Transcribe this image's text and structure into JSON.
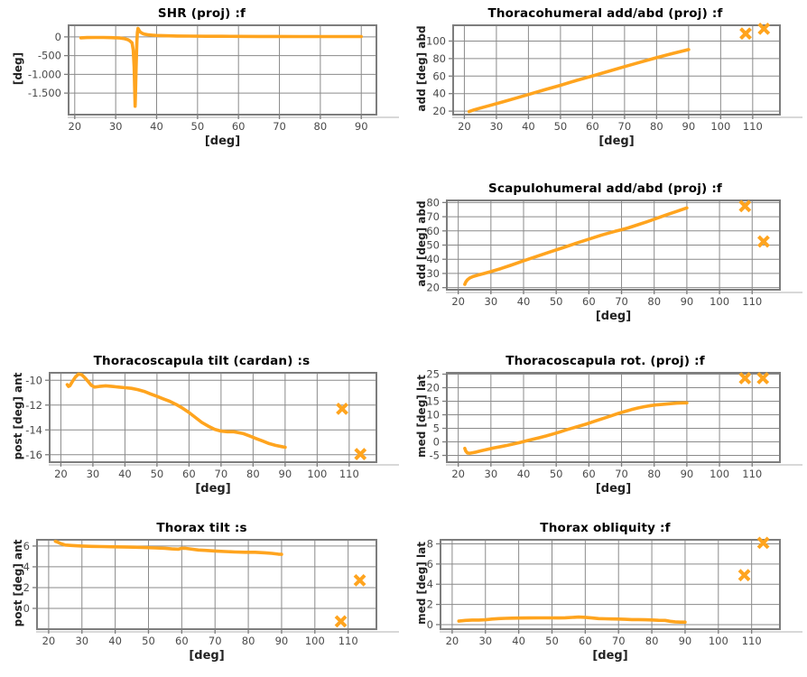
{
  "colors": {
    "series_line": "#FFA41E",
    "marker": "#FFA41E",
    "grid_line": "#8a8a8a",
    "plot_border": "#7d7d7d",
    "axis_shadow": "#cccccc",
    "tick_label": "#4a4a4a",
    "title_text": "#000000",
    "background": "#ffffff"
  },
  "chart_data": [
    {
      "type": "line",
      "title": "SHR (proj) :f",
      "xlabel": "[deg]",
      "ylabel": "[deg]",
      "xlim": [
        18.5,
        93.7
      ],
      "ylim": [
        -2075,
        310
      ],
      "xticks": [
        20,
        30,
        40,
        50,
        60,
        70,
        80,
        90
      ],
      "ytick_values": [
        0,
        -500,
        -1000,
        -1500
      ],
      "ytick_labels": [
        "0",
        "-500",
        "-1.000",
        "-1.500"
      ],
      "grid": true,
      "line_points": [
        [
          21.5,
          -25
        ],
        [
          23,
          -18
        ],
        [
          25,
          -15
        ],
        [
          27,
          -16
        ],
        [
          29,
          -20
        ],
        [
          31,
          -30
        ],
        [
          32,
          -45
        ],
        [
          33,
          -75
        ],
        [
          33.5,
          -110
        ],
        [
          34,
          -160
        ],
        [
          34.3,
          -350
        ],
        [
          34.5,
          -800
        ],
        [
          34.65,
          -1400
        ],
        [
          34.75,
          -1850
        ],
        [
          34.85,
          -1500
        ],
        [
          35,
          -800
        ],
        [
          35.1,
          -400
        ],
        [
          35.2,
          -100
        ],
        [
          35.3,
          120
        ],
        [
          35.45,
          225
        ],
        [
          35.6,
          205
        ],
        [
          35.8,
          160
        ],
        [
          36,
          130
        ],
        [
          36.5,
          95
        ],
        [
          37,
          75
        ],
        [
          38,
          55
        ],
        [
          39,
          45
        ],
        [
          40,
          38
        ],
        [
          42,
          30
        ],
        [
          45,
          24
        ],
        [
          48,
          20
        ],
        [
          52,
          17
        ],
        [
          56,
          15
        ],
        [
          60,
          14
        ],
        [
          65,
          12
        ],
        [
          70,
          11
        ],
        [
          75,
          10
        ],
        [
          80,
          10
        ],
        [
          85,
          9
        ],
        [
          90,
          8
        ]
      ],
      "cross_markers": []
    },
    {
      "type": "line",
      "title": "Thoracohumeral add/abd (proj) :f",
      "xlabel": "[deg]",
      "ylabel": "add [deg] abd",
      "xlim": [
        16.5,
        118.5
      ],
      "ylim": [
        16,
        118
      ],
      "xticks": [
        20,
        30,
        40,
        50,
        60,
        70,
        80,
        90,
        100,
        110
      ],
      "ytick_values": [
        20,
        40,
        60,
        80,
        100
      ],
      "ytick_labels": [
        "20",
        "40",
        "60",
        "80",
        "100"
      ],
      "grid": true,
      "line_points": [
        [
          21.5,
          19.5
        ],
        [
          23,
          21.5
        ],
        [
          25,
          23.5
        ],
        [
          28,
          26.5
        ],
        [
          32,
          30.5
        ],
        [
          36,
          34.8
        ],
        [
          40,
          39
        ],
        [
          45,
          44.3
        ],
        [
          50,
          49.5
        ],
        [
          55,
          55
        ],
        [
          60,
          60.2
        ],
        [
          65,
          65.5
        ],
        [
          70,
          70.8
        ],
        [
          75,
          76
        ],
        [
          80,
          81
        ],
        [
          85,
          85.8
        ],
        [
          90,
          90.3
        ]
      ],
      "cross_markers": [
        [
          107.8,
          108.5
        ],
        [
          113.5,
          114
        ]
      ]
    },
    {
      "type": "line",
      "title": "Scapulohumeral add/abd (proj) :f",
      "xlabel": "[deg]",
      "ylabel": "add [deg] abd",
      "xlim": [
        16.5,
        118.5
      ],
      "ylim": [
        18.5,
        81.5
      ],
      "xticks": [
        20,
        30,
        40,
        50,
        60,
        70,
        80,
        90,
        100,
        110
      ],
      "ytick_values": [
        20,
        30,
        40,
        50,
        60,
        70,
        80
      ],
      "ytick_labels": [
        "20",
        "30",
        "40",
        "50",
        "60",
        "70",
        "80"
      ],
      "grid": true,
      "line_points": [
        [
          22,
          22.3
        ],
        [
          22.3,
          24
        ],
        [
          22.8,
          25.5
        ],
        [
          23.5,
          26.8
        ],
        [
          24.5,
          27.8
        ],
        [
          26,
          28.8
        ],
        [
          28,
          30
        ],
        [
          30,
          31.3
        ],
        [
          33,
          33.4
        ],
        [
          36,
          35.7
        ],
        [
          40,
          38.9
        ],
        [
          44,
          42
        ],
        [
          48,
          45.1
        ],
        [
          52,
          48.1
        ],
        [
          56,
          51.2
        ],
        [
          60,
          54.2
        ],
        [
          64,
          57.1
        ],
        [
          68,
          59.7
        ],
        [
          70,
          60.8
        ],
        [
          72,
          62.1
        ],
        [
          75,
          64.3
        ],
        [
          78,
          66.6
        ],
        [
          81,
          69
        ],
        [
          84,
          71.5
        ],
        [
          87,
          73.8
        ],
        [
          90,
          76.2
        ]
      ],
      "cross_markers": [
        [
          107.8,
          77.5
        ],
        [
          113.5,
          52.5
        ]
      ]
    },
    {
      "type": "line",
      "title": "Thoracoscapula tilt (cardan) :s",
      "xlabel": "[deg]",
      "ylabel": "post [deg] ant",
      "xlim": [
        16.5,
        118.5
      ],
      "ylim": [
        -16.6,
        -9.4
      ],
      "xticks": [
        20,
        30,
        40,
        50,
        60,
        70,
        80,
        90,
        100,
        110
      ],
      "ytick_values": [
        -10,
        -12,
        -14,
        -16
      ],
      "ytick_labels": [
        "-10",
        "-12",
        "-14",
        "-16"
      ],
      "grid": true,
      "line_points": [
        [
          22,
          -10.35
        ],
        [
          22.4,
          -10.5
        ],
        [
          22.8,
          -10.45
        ],
        [
          23.5,
          -10.15
        ],
        [
          24.5,
          -9.75
        ],
        [
          25.5,
          -9.5
        ],
        [
          26.5,
          -9.55
        ],
        [
          27.5,
          -9.8
        ],
        [
          28.5,
          -10.1
        ],
        [
          29.5,
          -10.4
        ],
        [
          30.5,
          -10.55
        ],
        [
          32,
          -10.5
        ],
        [
          34,
          -10.45
        ],
        [
          36,
          -10.5
        ],
        [
          38,
          -10.55
        ],
        [
          40,
          -10.6
        ],
        [
          42,
          -10.65
        ],
        [
          44,
          -10.75
        ],
        [
          46,
          -10.9
        ],
        [
          48,
          -11.1
        ],
        [
          50,
          -11.3
        ],
        [
          52,
          -11.5
        ],
        [
          54,
          -11.7
        ],
        [
          56,
          -11.95
        ],
        [
          58,
          -12.25
        ],
        [
          60,
          -12.6
        ],
        [
          62,
          -13
        ],
        [
          64,
          -13.4
        ],
        [
          66,
          -13.7
        ],
        [
          68,
          -13.95
        ],
        [
          70,
          -14.1
        ],
        [
          72,
          -14.15
        ],
        [
          74,
          -14.15
        ],
        [
          75,
          -14.2
        ],
        [
          77,
          -14.3
        ],
        [
          79,
          -14.5
        ],
        [
          81,
          -14.7
        ],
        [
          83,
          -14.9
        ],
        [
          85,
          -15.1
        ],
        [
          87,
          -15.25
        ],
        [
          89,
          -15.35
        ],
        [
          90,
          -15.4
        ]
      ],
      "cross_markers": [
        [
          107.8,
          -12.3
        ],
        [
          113.5,
          -15.95
        ]
      ]
    },
    {
      "type": "line",
      "title": "Thoracoscapula rot. (proj) :f",
      "xlabel": "[deg]",
      "ylabel": "med [deg] lat",
      "xlim": [
        16.5,
        118.5
      ],
      "ylim": [
        -7.5,
        25.5
      ],
      "xticks": [
        20,
        30,
        40,
        50,
        60,
        70,
        80,
        90,
        100,
        110
      ],
      "ytick_values": [
        -5,
        0,
        5,
        10,
        15,
        20,
        25
      ],
      "ytick_labels": [
        "-5",
        "0",
        "5",
        "10",
        "15",
        "20",
        "25"
      ],
      "grid": true,
      "line_points": [
        [
          22,
          -2.4
        ],
        [
          22.3,
          -3.4
        ],
        [
          22.8,
          -4.1
        ],
        [
          23.5,
          -4.2
        ],
        [
          24.5,
          -4
        ],
        [
          25.5,
          -3.75
        ],
        [
          27,
          -3.3
        ],
        [
          29,
          -2.75
        ],
        [
          31,
          -2.2
        ],
        [
          33,
          -1.75
        ],
        [
          35,
          -1.3
        ],
        [
          37,
          -0.75
        ],
        [
          39,
          -0.2
        ],
        [
          41,
          0.4
        ],
        [
          43,
          1
        ],
        [
          45,
          1.6
        ],
        [
          47,
          2.2
        ],
        [
          49,
          2.9
        ],
        [
          51,
          3.6
        ],
        [
          53,
          4.4
        ],
        [
          55,
          5.1
        ],
        [
          57,
          5.8
        ],
        [
          59,
          6.5
        ],
        [
          61,
          7.3
        ],
        [
          63,
          8.1
        ],
        [
          65,
          8.9
        ],
        [
          67,
          9.7
        ],
        [
          69,
          10.5
        ],
        [
          71,
          11.2
        ],
        [
          73,
          11.9
        ],
        [
          75,
          12.5
        ],
        [
          77,
          13
        ],
        [
          79,
          13.4
        ],
        [
          81,
          13.7
        ],
        [
          83,
          13.9
        ],
        [
          85,
          14.1
        ],
        [
          87,
          14.3
        ],
        [
          89,
          14.4
        ],
        [
          90,
          14.4
        ]
      ],
      "cross_markers": [
        [
          107.8,
          23.5
        ],
        [
          113.3,
          23.5
        ]
      ]
    },
    {
      "type": "line",
      "title": "Thorax tilt :s",
      "xlabel": "[deg]",
      "ylabel": "post [deg] ant",
      "xlim": [
        16.5,
        118.5
      ],
      "ylim": [
        -2.0,
        6.6
      ],
      "xticks": [
        20,
        30,
        40,
        50,
        60,
        70,
        80,
        90,
        100,
        110
      ],
      "ytick_values": [
        0,
        2,
        4,
        6
      ],
      "ytick_labels": [
        "0",
        "2",
        "4",
        "6"
      ],
      "grid": true,
      "line_points": [
        [
          22,
          6.45
        ],
        [
          22.5,
          6.4
        ],
        [
          23.5,
          6.25
        ],
        [
          25,
          6.1
        ],
        [
          27,
          6.05
        ],
        [
          30,
          6
        ],
        [
          33,
          5.97
        ],
        [
          36,
          5.95
        ],
        [
          40,
          5.92
        ],
        [
          44,
          5.9
        ],
        [
          48,
          5.87
        ],
        [
          52,
          5.82
        ],
        [
          55,
          5.78
        ],
        [
          57,
          5.72
        ],
        [
          59,
          5.7
        ],
        [
          60,
          5.78
        ],
        [
          61,
          5.78
        ],
        [
          63,
          5.7
        ],
        [
          65,
          5.62
        ],
        [
          67,
          5.58
        ],
        [
          70,
          5.52
        ],
        [
          73,
          5.47
        ],
        [
          76,
          5.43
        ],
        [
          79,
          5.4
        ],
        [
          82,
          5.4
        ],
        [
          85,
          5.35
        ],
        [
          87,
          5.3
        ],
        [
          89,
          5.22
        ],
        [
          90,
          5.2
        ]
      ],
      "cross_markers": [
        [
          107.8,
          -1.25
        ],
        [
          113.5,
          2.7
        ]
      ]
    },
    {
      "type": "line",
      "title": "Thorax obliquity :f",
      "xlabel": "[deg]",
      "ylabel": "med [deg] lat",
      "xlim": [
        16.5,
        118.5
      ],
      "ylim": [
        -0.45,
        8.4
      ],
      "xticks": [
        20,
        30,
        40,
        50,
        60,
        70,
        80,
        90,
        100,
        110
      ],
      "ytick_values": [
        0,
        2,
        4,
        6,
        8
      ],
      "ytick_labels": [
        "0",
        "2",
        "4",
        "6",
        "8"
      ],
      "grid": true,
      "line_points": [
        [
          22,
          0.35
        ],
        [
          24,
          0.42
        ],
        [
          26,
          0.45
        ],
        [
          28,
          0.45
        ],
        [
          30,
          0.48
        ],
        [
          32,
          0.55
        ],
        [
          34,
          0.6
        ],
        [
          36,
          0.62
        ],
        [
          38,
          0.64
        ],
        [
          40,
          0.65
        ],
        [
          43,
          0.66
        ],
        [
          46,
          0.67
        ],
        [
          49,
          0.67
        ],
        [
          52,
          0.66
        ],
        [
          54,
          0.68
        ],
        [
          56,
          0.71
        ],
        [
          58,
          0.75
        ],
        [
          60,
          0.72
        ],
        [
          62,
          0.66
        ],
        [
          64,
          0.6
        ],
        [
          66,
          0.58
        ],
        [
          68,
          0.56
        ],
        [
          70,
          0.55
        ],
        [
          72,
          0.52
        ],
        [
          74,
          0.5
        ],
        [
          76,
          0.5
        ],
        [
          78,
          0.48
        ],
        [
          80,
          0.46
        ],
        [
          82,
          0.43
        ],
        [
          84,
          0.42
        ],
        [
          85.5,
          0.33
        ],
        [
          87,
          0.27
        ],
        [
          88.5,
          0.25
        ],
        [
          90,
          0.25
        ]
      ],
      "cross_markers": [
        [
          107.8,
          4.9
        ],
        [
          113.5,
          8.1
        ]
      ]
    }
  ]
}
